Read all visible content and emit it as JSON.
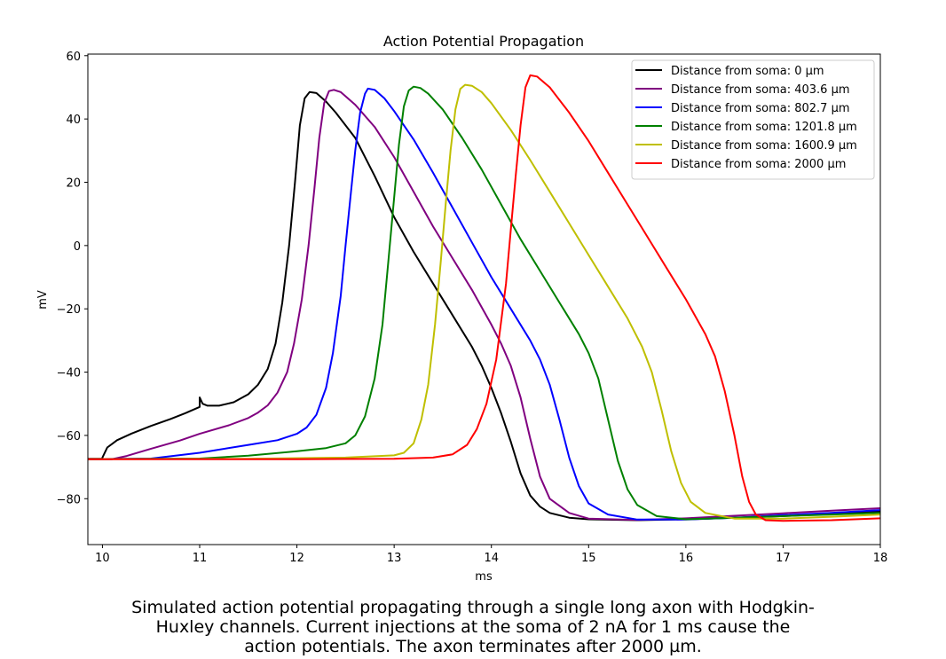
{
  "chart_data": {
    "type": "line",
    "title": "Action Potential Propagation",
    "xlabel": "ms",
    "ylabel": "mV",
    "xlim": [
      9.85,
      18.0
    ],
    "ylim": [
      -94.5,
      60.5
    ],
    "xticks": [
      10,
      11,
      12,
      13,
      14,
      15,
      16,
      17,
      18
    ],
    "yticks": [
      -80,
      -60,
      -40,
      -20,
      0,
      20,
      40,
      60
    ],
    "grid": false,
    "legend_position": "top-right",
    "series": [
      {
        "name": "Distance from soma: 0 µm",
        "color": "#000000",
        "points": [
          [
            9.85,
            -67.4
          ],
          [
            10.0,
            -67.4
          ],
          [
            10.0,
            -67.0
          ],
          [
            10.05,
            -63.8
          ],
          [
            10.15,
            -61.5
          ],
          [
            10.3,
            -59.4
          ],
          [
            10.5,
            -57.0
          ],
          [
            10.7,
            -54.8
          ],
          [
            10.85,
            -53.0
          ],
          [
            11.0,
            -51.0
          ],
          [
            11.0,
            -48.0
          ],
          [
            11.03,
            -50.0
          ],
          [
            11.08,
            -50.6
          ],
          [
            11.2,
            -50.6
          ],
          [
            11.35,
            -49.5
          ],
          [
            11.5,
            -47.0
          ],
          [
            11.6,
            -44.0
          ],
          [
            11.7,
            -39.0
          ],
          [
            11.78,
            -31.0
          ],
          [
            11.85,
            -18.0
          ],
          [
            11.92,
            0.0
          ],
          [
            11.98,
            20.0
          ],
          [
            12.03,
            38.0
          ],
          [
            12.08,
            46.5
          ],
          [
            12.13,
            48.5
          ],
          [
            12.2,
            48.2
          ],
          [
            12.3,
            45.5
          ],
          [
            12.4,
            42.0
          ],
          [
            12.6,
            34.0
          ],
          [
            12.8,
            22.0
          ],
          [
            13.0,
            9.0
          ],
          [
            13.2,
            -2.0
          ],
          [
            13.4,
            -12.0
          ],
          [
            13.6,
            -22.0
          ],
          [
            13.8,
            -32.0
          ],
          [
            13.9,
            -38.0
          ],
          [
            14.0,
            -45.0
          ],
          [
            14.1,
            -53.0
          ],
          [
            14.2,
            -62.0
          ],
          [
            14.3,
            -72.0
          ],
          [
            14.4,
            -79.0
          ],
          [
            14.5,
            -82.5
          ],
          [
            14.6,
            -84.5
          ],
          [
            14.8,
            -86.0
          ],
          [
            15.0,
            -86.5
          ],
          [
            15.5,
            -86.8
          ],
          [
            16.0,
            -86.5
          ],
          [
            16.5,
            -86.0
          ],
          [
            17.0,
            -85.5
          ],
          [
            17.5,
            -84.8
          ],
          [
            18.0,
            -84.0
          ]
        ]
      },
      {
        "name": "Distance from soma: 403.6 µm",
        "color": "#800080",
        "points": [
          [
            9.85,
            -67.5
          ],
          [
            10.1,
            -67.5
          ],
          [
            10.25,
            -66.5
          ],
          [
            10.5,
            -64.2
          ],
          [
            10.8,
            -61.6
          ],
          [
            11.0,
            -59.5
          ],
          [
            11.3,
            -56.8
          ],
          [
            11.5,
            -54.5
          ],
          [
            11.6,
            -52.8
          ],
          [
            11.7,
            -50.5
          ],
          [
            11.8,
            -46.5
          ],
          [
            11.9,
            -40.0
          ],
          [
            11.97,
            -31.0
          ],
          [
            12.05,
            -17.0
          ],
          [
            12.12,
            0.0
          ],
          [
            12.18,
            18.0
          ],
          [
            12.23,
            34.0
          ],
          [
            12.28,
            45.0
          ],
          [
            12.33,
            48.8
          ],
          [
            12.38,
            49.2
          ],
          [
            12.45,
            48.5
          ],
          [
            12.6,
            44.5
          ],
          [
            12.8,
            37.5
          ],
          [
            13.0,
            28.0
          ],
          [
            13.2,
            17.0
          ],
          [
            13.4,
            6.0
          ],
          [
            13.6,
            -4.0
          ],
          [
            13.8,
            -14.0
          ],
          [
            14.0,
            -25.0
          ],
          [
            14.1,
            -31.0
          ],
          [
            14.2,
            -38.0
          ],
          [
            14.3,
            -48.0
          ],
          [
            14.4,
            -61.0
          ],
          [
            14.5,
            -73.0
          ],
          [
            14.6,
            -80.0
          ],
          [
            14.8,
            -84.5
          ],
          [
            15.0,
            -86.3
          ],
          [
            15.5,
            -86.7
          ],
          [
            16.0,
            -86.2
          ],
          [
            16.5,
            -85.4
          ],
          [
            17.0,
            -84.6
          ],
          [
            17.5,
            -83.8
          ],
          [
            18.0,
            -83.0
          ]
        ]
      },
      {
        "name": "Distance from soma: 802.7 µm",
        "color": "#0000ff",
        "points": [
          [
            9.85,
            -67.5
          ],
          [
            10.5,
            -67.3
          ],
          [
            11.0,
            -65.5
          ],
          [
            11.5,
            -63.0
          ],
          [
            11.8,
            -61.5
          ],
          [
            12.0,
            -59.5
          ],
          [
            12.1,
            -57.5
          ],
          [
            12.2,
            -53.5
          ],
          [
            12.3,
            -45.0
          ],
          [
            12.37,
            -34.0
          ],
          [
            12.45,
            -16.0
          ],
          [
            12.5,
            0.0
          ],
          [
            12.55,
            15.0
          ],
          [
            12.6,
            30.0
          ],
          [
            12.65,
            42.0
          ],
          [
            12.7,
            48.0
          ],
          [
            12.73,
            49.6
          ],
          [
            12.8,
            49.2
          ],
          [
            12.9,
            46.5
          ],
          [
            13.0,
            42.5
          ],
          [
            13.2,
            33.5
          ],
          [
            13.4,
            23.0
          ],
          [
            13.6,
            12.0
          ],
          [
            13.8,
            1.0
          ],
          [
            14.0,
            -10.0
          ],
          [
            14.2,
            -20.0
          ],
          [
            14.4,
            -30.0
          ],
          [
            14.5,
            -36.0
          ],
          [
            14.6,
            -44.0
          ],
          [
            14.7,
            -55.0
          ],
          [
            14.8,
            -67.0
          ],
          [
            14.9,
            -76.0
          ],
          [
            15.0,
            -81.5
          ],
          [
            15.2,
            -85.0
          ],
          [
            15.5,
            -86.6
          ],
          [
            16.0,
            -86.6
          ],
          [
            16.5,
            -86.0
          ],
          [
            17.0,
            -85.2
          ],
          [
            17.5,
            -84.5
          ],
          [
            18.0,
            -83.6
          ]
        ]
      },
      {
        "name": "Distance from soma: 1201.8 µm",
        "color": "#008000",
        "points": [
          [
            9.85,
            -67.5
          ],
          [
            11.0,
            -67.3
          ],
          [
            11.5,
            -66.4
          ],
          [
            12.0,
            -65.0
          ],
          [
            12.3,
            -64.0
          ],
          [
            12.5,
            -62.5
          ],
          [
            12.6,
            -60.0
          ],
          [
            12.7,
            -54.0
          ],
          [
            12.8,
            -42.0
          ],
          [
            12.88,
            -25.0
          ],
          [
            12.94,
            -5.0
          ],
          [
            13.0,
            15.0
          ],
          [
            13.05,
            32.0
          ],
          [
            13.1,
            44.0
          ],
          [
            13.15,
            49.0
          ],
          [
            13.2,
            50.2
          ],
          [
            13.27,
            49.8
          ],
          [
            13.35,
            48.0
          ],
          [
            13.5,
            43.0
          ],
          [
            13.7,
            34.0
          ],
          [
            13.9,
            24.0
          ],
          [
            14.1,
            13.0
          ],
          [
            14.3,
            2.0
          ],
          [
            14.5,
            -8.0
          ],
          [
            14.7,
            -18.0
          ],
          [
            14.9,
            -28.0
          ],
          [
            15.0,
            -34.0
          ],
          [
            15.1,
            -42.0
          ],
          [
            15.2,
            -55.0
          ],
          [
            15.3,
            -68.0
          ],
          [
            15.4,
            -77.0
          ],
          [
            15.5,
            -82.0
          ],
          [
            15.7,
            -85.5
          ],
          [
            16.0,
            -86.5
          ],
          [
            16.5,
            -86.0
          ],
          [
            17.0,
            -85.5
          ],
          [
            17.5,
            -85.0
          ],
          [
            18.0,
            -84.5
          ]
        ]
      },
      {
        "name": "Distance from soma: 1600.9 µm",
        "color": "#bfbf00",
        "points": [
          [
            9.85,
            -67.5
          ],
          [
            11.5,
            -67.4
          ],
          [
            12.5,
            -67.0
          ],
          [
            13.0,
            -66.3
          ],
          [
            13.1,
            -65.5
          ],
          [
            13.2,
            -62.5
          ],
          [
            13.28,
            -55.0
          ],
          [
            13.35,
            -44.0
          ],
          [
            13.42,
            -25.0
          ],
          [
            13.48,
            -5.0
          ],
          [
            13.53,
            13.0
          ],
          [
            13.58,
            30.0
          ],
          [
            13.63,
            43.0
          ],
          [
            13.68,
            49.5
          ],
          [
            13.73,
            50.8
          ],
          [
            13.8,
            50.5
          ],
          [
            13.9,
            48.5
          ],
          [
            14.0,
            45.0
          ],
          [
            14.2,
            36.5
          ],
          [
            14.4,
            27.0
          ],
          [
            14.6,
            17.0
          ],
          [
            14.8,
            7.0
          ],
          [
            15.0,
            -3.0
          ],
          [
            15.2,
            -13.0
          ],
          [
            15.4,
            -23.0
          ],
          [
            15.55,
            -32.0
          ],
          [
            15.65,
            -40.0
          ],
          [
            15.75,
            -52.0
          ],
          [
            15.85,
            -65.0
          ],
          [
            15.95,
            -75.0
          ],
          [
            16.05,
            -81.0
          ],
          [
            16.2,
            -84.5
          ],
          [
            16.5,
            -86.3
          ],
          [
            17.0,
            -86.3
          ],
          [
            17.5,
            -85.7
          ],
          [
            18.0,
            -85.0
          ]
        ]
      },
      {
        "name": "Distance from soma: 2000 µm",
        "color": "#ff0000",
        "points": [
          [
            9.85,
            -67.5
          ],
          [
            12.0,
            -67.5
          ],
          [
            13.0,
            -67.4
          ],
          [
            13.4,
            -67.0
          ],
          [
            13.6,
            -66.0
          ],
          [
            13.75,
            -63.0
          ],
          [
            13.85,
            -58.0
          ],
          [
            13.95,
            -50.0
          ],
          [
            14.05,
            -36.0
          ],
          [
            14.15,
            -12.0
          ],
          [
            14.2,
            5.0
          ],
          [
            14.25,
            22.0
          ],
          [
            14.3,
            38.0
          ],
          [
            14.35,
            50.0
          ],
          [
            14.4,
            53.8
          ],
          [
            14.47,
            53.4
          ],
          [
            14.6,
            50.0
          ],
          [
            14.8,
            42.0
          ],
          [
            15.0,
            33.0
          ],
          [
            15.2,
            23.0
          ],
          [
            15.4,
            13.0
          ],
          [
            15.6,
            3.0
          ],
          [
            15.8,
            -7.0
          ],
          [
            16.0,
            -17.0
          ],
          [
            16.2,
            -28.0
          ],
          [
            16.3,
            -35.0
          ],
          [
            16.4,
            -46.0
          ],
          [
            16.5,
            -60.0
          ],
          [
            16.58,
            -73.0
          ],
          [
            16.65,
            -81.0
          ],
          [
            16.72,
            -85.0
          ],
          [
            16.82,
            -86.8
          ],
          [
            17.0,
            -87.0
          ],
          [
            17.5,
            -86.8
          ],
          [
            18.0,
            -86.2
          ]
        ]
      }
    ]
  },
  "caption": {
    "line1": "Simulated action potential propagating through a single long axon with Hodgkin-",
    "line2": "Huxley channels. Current injections at the soma of 2 nA for 1 ms cause the",
    "line3": "action potentials. The axon terminates after 2000 µm."
  }
}
